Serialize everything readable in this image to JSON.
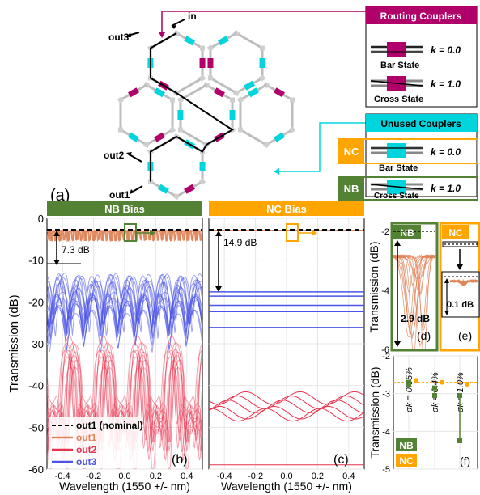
{
  "colors": {
    "nb_green": "#548235",
    "nc_orange": "#FFA500",
    "magenta": "#B0006A",
    "cyan": "#00D5DD",
    "out1": "#E0855A",
    "out2": "#E8334E",
    "out3": "#4B54E6",
    "grey_coupler": "#BDBDBD"
  },
  "panel_a": {
    "label": "(a)",
    "port_in": "in",
    "port_out1": "out1",
    "port_out2": "out2",
    "port_out3": "out3",
    "routing_title": "Routing Couplers",
    "bar_state": "Bar State",
    "cross_state": "Cross State",
    "k0": "k = 0.0",
    "k1": "k = 1.0",
    "unused_title": "Unused Couplers",
    "nc_tag": "NC",
    "nb_tag": "NB",
    "icons": [
      "bar-coupler-icon",
      "cross-coupler-icon"
    ]
  },
  "chart_data": [
    {
      "id": "b",
      "type": "line",
      "panel_title": "NB Bias",
      "panel_label": "(b)",
      "xlabel": "Wavelength (1550 +/- nm)",
      "ylabel": "Transmission (dB)",
      "xlim": [
        -0.5,
        0.5
      ],
      "ylim": [
        -60,
        0
      ],
      "xticks": [
        -0.4,
        -0.2,
        0.0,
        0.2,
        0.4
      ],
      "yticks": [
        0,
        -10,
        -20,
        -30,
        -40,
        -50,
        -60
      ],
      "annotation": "7.3 dB",
      "annotation_range": [
        -2.7,
        -10
      ],
      "series": [
        {
          "name": "out1 (nominal)",
          "color": "#000000",
          "style": "dashed",
          "level": -2.7
        },
        {
          "name": "out1",
          "color": "#E0855A",
          "level": -3,
          "approx": true
        },
        {
          "name": "out2",
          "color": "#E8334E",
          "range": [
            -60,
            -26
          ],
          "approx": true
        },
        {
          "name": "out3",
          "color": "#4B54E6",
          "range": [
            -30,
            -10
          ],
          "approx": true
        }
      ]
    },
    {
      "id": "c",
      "type": "line",
      "panel_title": "NC Bias",
      "panel_label": "(c)",
      "xlabel": "Wavelength (1550 +/- nm)",
      "xlim": [
        -0.5,
        0.5
      ],
      "ylim": [
        -60,
        0
      ],
      "xticks": [
        -0.4,
        -0.2,
        0.0,
        0.2,
        0.4
      ],
      "annotation": "14.9 dB",
      "annotation_range": [
        -2.7,
        -17.6
      ],
      "series": [
        {
          "name": "out1 (nominal)",
          "color": "#000000",
          "style": "dashed",
          "level": -2.7
        },
        {
          "name": "out1",
          "color": "#E0855A",
          "level": -2.9
        },
        {
          "name": "out3",
          "color": "#4B54E6",
          "levels": [
            -17.6,
            -18.6,
            -20.8,
            -22.3,
            -26.1
          ]
        },
        {
          "name": "out2",
          "color": "#E8334E",
          "levels": [
            -43,
            -44,
            -45,
            -46.5,
            -47,
            -59
          ]
        }
      ]
    },
    {
      "id": "d",
      "type": "line",
      "panel_title": "NB",
      "panel_label": "(d)",
      "ylabel": "Transmission (dB)",
      "ylim": [
        -6,
        -2
      ],
      "yticks": [
        -2,
        -4,
        -6
      ],
      "annotation": "2.9 dB",
      "series": [
        {
          "name": "out1",
          "color": "#E0855A",
          "dip_to": -5.6
        }
      ]
    },
    {
      "id": "e",
      "type": "line",
      "panel_title": "NC",
      "panel_label": "(e)",
      "annotation": "0.1 dB",
      "series": [
        {
          "name": "out1",
          "color": "#E0855A"
        }
      ]
    },
    {
      "id": "f",
      "type": "scatter",
      "panel_label": "(f)",
      "ylabel": "Transmission (dB)",
      "ylim": [
        -5,
        -2
      ],
      "yticks": [
        -2,
        -3,
        -4,
        -5
      ],
      "categories": [
        "σk = 0.05%",
        "σk = 0.4%",
        "σk = 1.0%"
      ],
      "nominal": -2.7,
      "series": [
        {
          "name": "NB",
          "color": "#548235",
          "values": [
            -2.7,
            -2.85,
            -3.05
          ],
          "min": [
            -2.75,
            -3.05,
            -4.25
          ]
        },
        {
          "name": "NC",
          "color": "#FFA500",
          "values": [
            -2.65,
            -2.7,
            -2.75
          ]
        }
      ],
      "legend": [
        "NB",
        "NC"
      ]
    }
  ],
  "shared": {
    "legend_out1_nominal": "out1 (nominal)",
    "legend_out1": "out1",
    "legend_out2": "out2",
    "legend_out3": "out3"
  }
}
